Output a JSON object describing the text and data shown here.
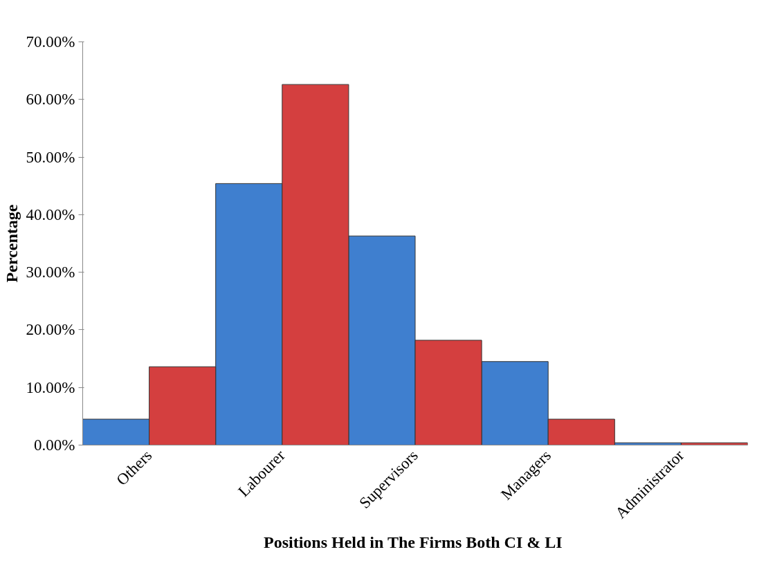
{
  "chart_data": {
    "type": "bar",
    "xlabel": "Positions  Held in The Firms Both CI & LI",
    "ylabel": "Percentage",
    "categories": [
      "Others",
      "Labourer",
      "Supervisors",
      "Managers",
      "Administrator"
    ],
    "series": [
      {
        "color": "#3f7fcf",
        "values": [
          4.5,
          45.4,
          36.3,
          14.5,
          0.4
        ]
      },
      {
        "color": "#d43f3f",
        "values": [
          13.6,
          62.6,
          18.2,
          4.5,
          0.4
        ]
      }
    ],
    "ylim": [
      0,
      70
    ],
    "yticks": [
      {
        "value": 0,
        "label": "0.00%"
      },
      {
        "value": 10,
        "label": "10.00%"
      },
      {
        "value": 20,
        "label": "20.00%"
      },
      {
        "value": 30,
        "label": "30.00%"
      },
      {
        "value": 40,
        "label": "40.00%"
      },
      {
        "value": 50,
        "label": "50.00%"
      },
      {
        "value": 60,
        "label": "60.00%"
      },
      {
        "value": 70,
        "label": "70.00%"
      }
    ],
    "grid": false
  }
}
